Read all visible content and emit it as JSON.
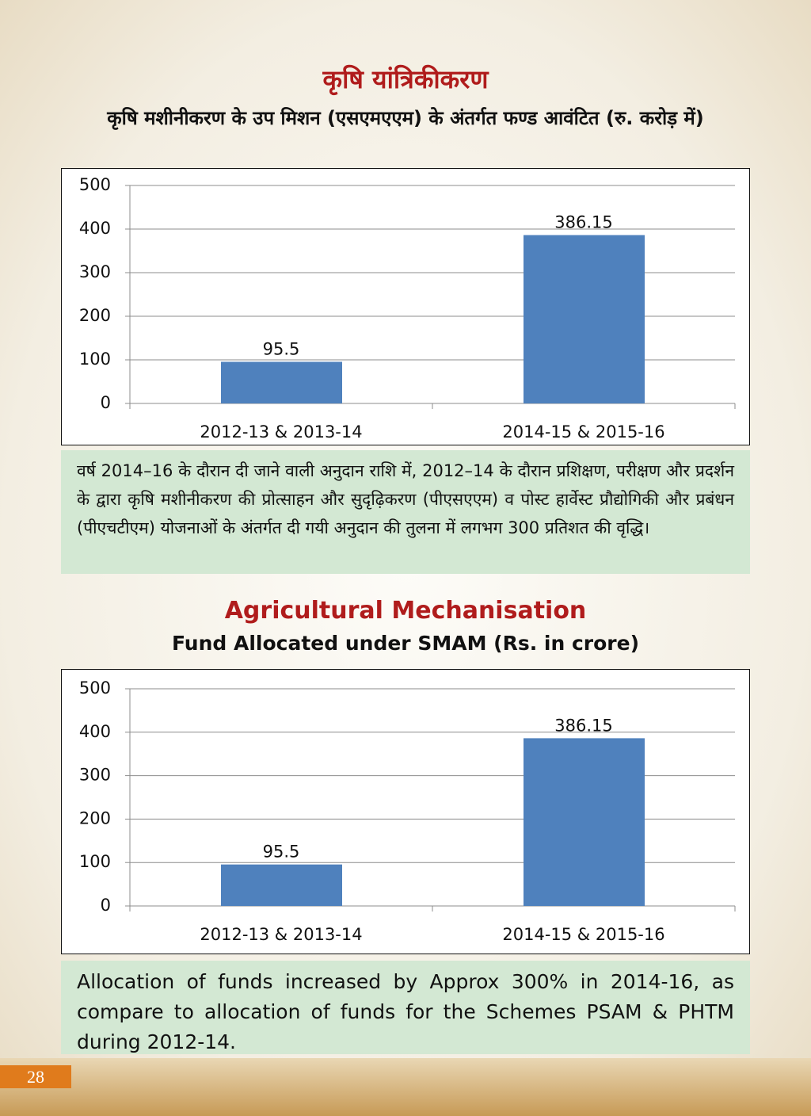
{
  "chart_data": [
    {
      "type": "bar",
      "title": "कृषि यांत्रिकीकरण",
      "subtitle": "कृषि मशीनीकरण के उप मिशन (एसएमएएम) के अंतर्गत फण्ड आवंटित (रु. करोड़ में)",
      "categories": [
        "2012-13 & 2013-14",
        "2014-15 & 2015-16"
      ],
      "values": [
        95.5,
        386.15
      ],
      "color": "#4f81bd",
      "ylim": [
        0,
        500
      ],
      "yticks": [
        0,
        100,
        200,
        300,
        400,
        500
      ],
      "grid": true,
      "note": "वर्ष 2014–16 के दौरान दी जाने वाली अनुदान राशि में, 2012–14 के दौरान प्रशिक्षण, परीक्षण और प्रदर्शन के द्वारा कृषि मशीनीकरण की प्रोत्साहन और सुदृढ़िकरण (पीएसएएम) व पोस्ट हार्वेस्ट प्रौद्योगिकी और प्रबंधन (पीएचटीएम) योजनाओं के अंतर्गत दी गयी अनुदान की तुलना में लगभग 300 प्रतिशत की वृद्धि।"
    },
    {
      "type": "bar",
      "title": "Agricultural Mechanisation",
      "subtitle": "Fund Allocated under SMAM (Rs. in crore)",
      "categories": [
        "2012-13 & 2013-14",
        "2014-15 & 2015-16"
      ],
      "values": [
        95.5,
        386.15
      ],
      "color": "#4f81bd",
      "ylim": [
        0,
        500
      ],
      "yticks": [
        0,
        100,
        200,
        300,
        400,
        500
      ],
      "grid": true,
      "note": "Allocation of funds increased by Approx 300% in 2014-16, as compare to allocation of funds for the Schemes PSAM & PHTM during 2012-14."
    }
  ],
  "page_number": "28"
}
